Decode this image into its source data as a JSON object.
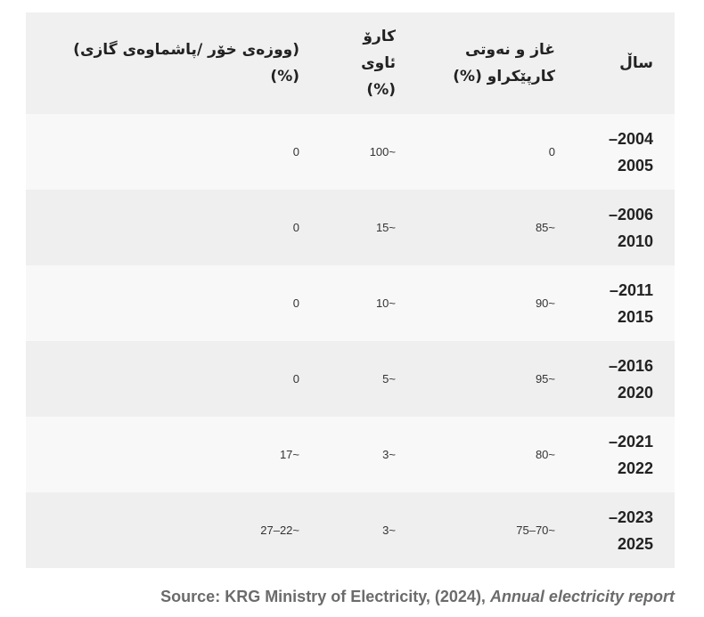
{
  "table": {
    "header": [
      "ساڵ",
      "غاز و نەوتی کارپێکراو (%)",
      "کارۆ ئاوی (%)",
      "(ووزەی خۆر /پاشماوەی گازی) (%)"
    ],
    "rows": [
      [
        "2004–2005",
        "0",
        "~100",
        "0"
      ],
      [
        "2006–2010",
        "~85",
        "~15",
        "0"
      ],
      [
        "2011–2015",
        "~90",
        "~10",
        "0"
      ],
      [
        "2016–2020",
        "~95",
        "~5",
        "0"
      ],
      [
        "2021–2022",
        "~80",
        "~3",
        "~17"
      ],
      [
        "2023–2025",
        "~70–75",
        "~3",
        "~22–27"
      ]
    ]
  },
  "source": {
    "text": "Source: KRG Ministry of Electricity, (2024), ",
    "italic": "Annual electricity report"
  }
}
